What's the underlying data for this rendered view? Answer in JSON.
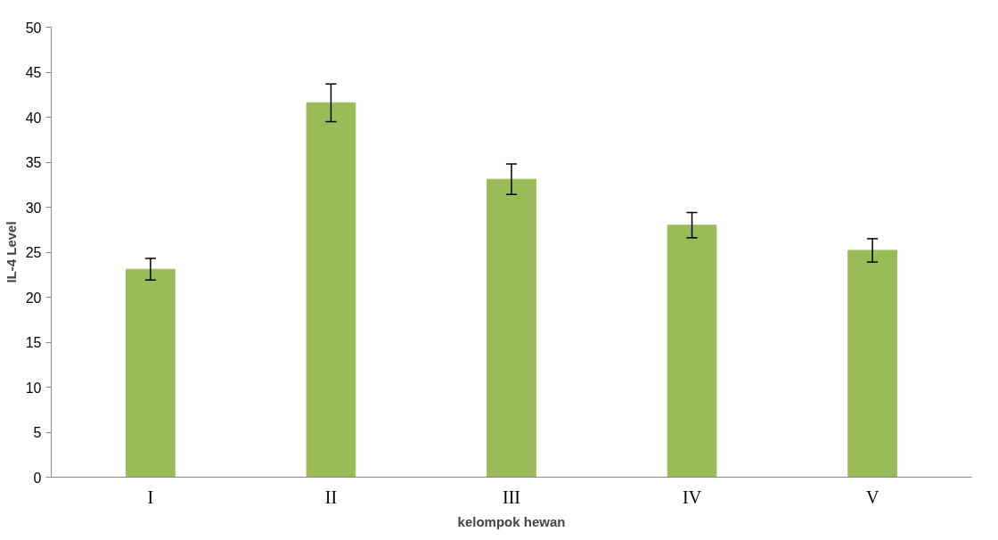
{
  "chart_data": {
    "type": "bar",
    "xlabel": "kelompok hewan",
    "ylabel": "IL-4 Level",
    "categories": [
      "I",
      "II",
      "III",
      "IV",
      "V"
    ],
    "values": [
      23.1,
      41.6,
      33.1,
      28.0,
      25.2
    ],
    "errors": [
      1.2,
      2.1,
      1.7,
      1.4,
      1.3
    ],
    "color": "#9bbb59",
    "ylim": [
      0,
      50
    ],
    "yticks": [
      0,
      5,
      10,
      15,
      20,
      25,
      30,
      35,
      40,
      45,
      50
    ],
    "grid": false
  }
}
